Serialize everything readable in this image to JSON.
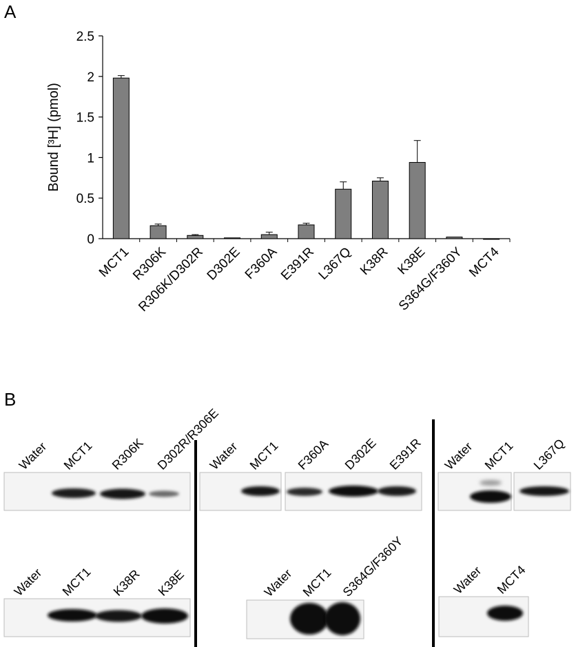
{
  "panel_a_label": "A",
  "panel_b_label": "B",
  "chart_data": {
    "type": "bar",
    "title": "",
    "xlabel": "",
    "ylabel": "Bound [³H] (pmol)",
    "ylim": [
      0,
      2.5
    ],
    "yticks": [
      "0",
      "0.5",
      "1",
      "1.5",
      "2",
      "2.5"
    ],
    "categories": [
      "MCT1",
      "R306K",
      "R306K/D302R",
      "D302E",
      "F360A",
      "E391R",
      "L367Q",
      "K38R",
      "K38E",
      "S364G/F360Y",
      "MCT4"
    ],
    "values": [
      1.98,
      0.16,
      0.04,
      0.01,
      0.05,
      0.17,
      0.61,
      0.71,
      0.94,
      0.02,
      0.0
    ],
    "errors": [
      0.03,
      0.02,
      0.01,
      0.0,
      0.03,
      0.02,
      0.09,
      0.04,
      0.27,
      0.0,
      0.0
    ],
    "bar_color": "#7f7f7f",
    "grid": false
  },
  "blots": {
    "row1": {
      "group1": [
        "Water",
        "MCT1",
        "R306K",
        "D302R/R306E"
      ],
      "group2": [
        "Water",
        "MCT1",
        "F360A",
        "D302E",
        "E391R"
      ],
      "group3": [
        "Water",
        "MCT1",
        "L367Q"
      ]
    },
    "row2": {
      "group1": [
        "Water",
        "MCT1",
        "K38R",
        "K38E"
      ],
      "group2": [
        "Water",
        "MCT1",
        "S364G/F360Y"
      ],
      "group3": [
        "Water",
        "MCT4"
      ]
    }
  }
}
